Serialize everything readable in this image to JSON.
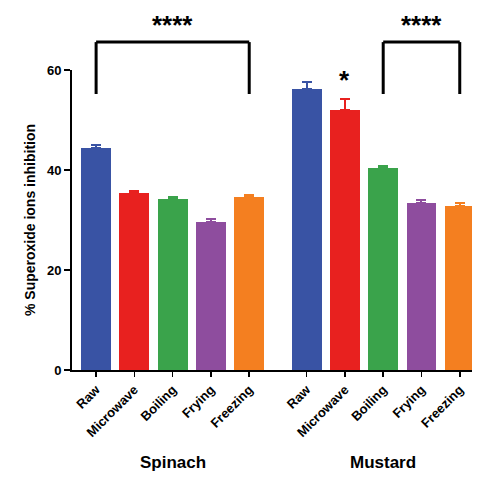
{
  "chart_data": {
    "type": "bar",
    "y_label": "% Superoxide ions inhibition",
    "categories": [
      "Raw",
      "Microwave",
      "Boiling",
      "Frying",
      "Freezing"
    ],
    "colors": [
      "#3953a4",
      "#e8211f",
      "#3aa34b",
      "#8e4d9e",
      "#f47f20"
    ],
    "series": [
      {
        "name": "Spinach",
        "values": [
          44.5,
          35.5,
          34.3,
          29.7,
          34.7
        ],
        "errors": [
          0.6,
          0.3,
          0.4,
          0.6,
          0.3
        ]
      },
      {
        "name": "Mustard",
        "values": [
          56.2,
          52.0,
          40.5,
          33.5,
          32.8
        ],
        "errors": [
          1.5,
          2.3,
          0.3,
          0.6,
          0.7
        ]
      }
    ],
    "ylim": [
      0,
      60
    ],
    "yticks": [
      0,
      20,
      40,
      60
    ],
    "grid": false,
    "annotations": [
      {
        "text": "****",
        "series": "Spinach",
        "from": "Raw",
        "to": "Freezing"
      },
      {
        "text": "*",
        "series": "Mustard",
        "at": "Microwave"
      },
      {
        "text": "****",
        "series": "Mustard",
        "from": "Boiling",
        "to": "Freezing"
      }
    ]
  }
}
